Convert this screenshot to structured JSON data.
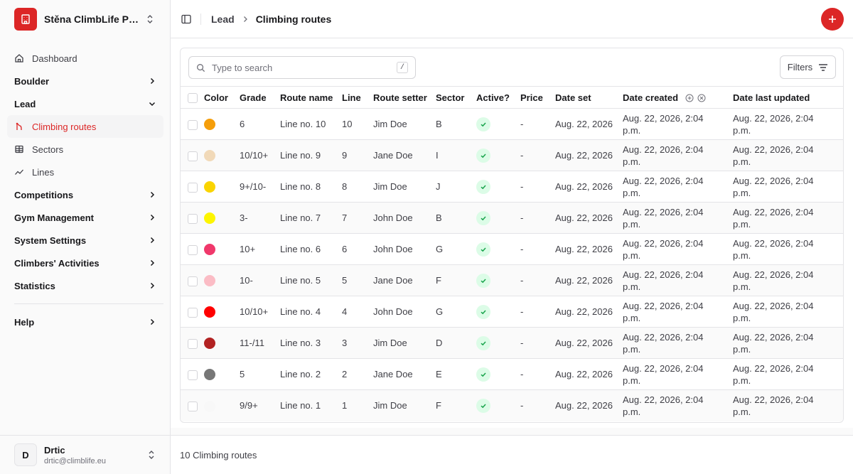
{
  "sidebar": {
    "gym_name": "Stěna ClimbLife Pra...",
    "items": [
      {
        "type": "item",
        "label": "Dashboard",
        "icon": "home-icon",
        "name": "sidebar-item-dashboard"
      },
      {
        "type": "group",
        "label": "Boulder",
        "name": "sidebar-group-boulder",
        "expanded": false
      },
      {
        "type": "group",
        "label": "Lead",
        "name": "sidebar-group-lead",
        "expanded": true
      },
      {
        "type": "item",
        "label": "Climbing routes",
        "icon": "climbing-routes-icon",
        "name": "sidebar-item-climbing-routes",
        "active": true
      },
      {
        "type": "item",
        "label": "Sectors",
        "icon": "grid-icon",
        "name": "sidebar-item-sectors"
      },
      {
        "type": "item",
        "label": "Lines",
        "icon": "trend-icon",
        "name": "sidebar-item-lines"
      },
      {
        "type": "group",
        "label": "Competitions",
        "name": "sidebar-group-competitions",
        "expanded": false
      },
      {
        "type": "group",
        "label": "Gym Management",
        "name": "sidebar-group-gym-management",
        "expanded": false
      },
      {
        "type": "group",
        "label": "System Settings",
        "name": "sidebar-group-system-settings",
        "expanded": false
      },
      {
        "type": "group",
        "label": "Climbers' Activities",
        "name": "sidebar-group-climbers-activities",
        "expanded": false
      },
      {
        "type": "group",
        "label": "Statistics",
        "name": "sidebar-group-statistics",
        "expanded": false
      },
      {
        "type": "separator"
      },
      {
        "type": "group",
        "label": "Help",
        "name": "sidebar-group-help",
        "expanded": false
      }
    ],
    "user": {
      "initial": "D",
      "name": "Drtic",
      "email": "drtic@climblife.eu"
    }
  },
  "header": {
    "breadcrumb_parent": "Lead",
    "breadcrumb_current": "Climbing routes"
  },
  "toolbar": {
    "search_placeholder": "Type to search",
    "search_shortcut": "/",
    "filters_label": "Filters"
  },
  "table": {
    "columns": [
      "Color",
      "Grade",
      "Route name",
      "Line",
      "Route setter",
      "Sector",
      "Active?",
      "Price",
      "Date set",
      "Date created",
      "Date last updated"
    ],
    "rows": [
      {
        "color": "#f59e0b",
        "grade": "6",
        "route_name": "Line no. 10",
        "line": "10",
        "setter": "Jim Doe",
        "sector": "B",
        "active": true,
        "price": "-",
        "date_set": "Aug. 22, 2026",
        "date_created": "Aug. 22, 2026, 2:04 p.m.",
        "date_updated": "Aug. 22, 2026, 2:04 p.m."
      },
      {
        "color": "#f1d9b8",
        "grade": "10/10+",
        "route_name": "Line no. 9",
        "line": "9",
        "setter": "Jane Doe",
        "sector": "I",
        "active": true,
        "price": "-",
        "date_set": "Aug. 22, 2026",
        "date_created": "Aug. 22, 2026, 2:04 p.m.",
        "date_updated": "Aug. 22, 2026, 2:04 p.m."
      },
      {
        "color": "#fad400",
        "grade": "9+/10-",
        "route_name": "Line no. 8",
        "line": "8",
        "setter": "Jim Doe",
        "sector": "J",
        "active": true,
        "price": "-",
        "date_set": "Aug. 22, 2026",
        "date_created": "Aug. 22, 2026, 2:04 p.m.",
        "date_updated": "Aug. 22, 2026, 2:04 p.m."
      },
      {
        "color": "#fdf500",
        "grade": "3-",
        "route_name": "Line no. 7",
        "line": "7",
        "setter": "John Doe",
        "sector": "B",
        "active": true,
        "price": "-",
        "date_set": "Aug. 22, 2026",
        "date_created": "Aug. 22, 2026, 2:04 p.m.",
        "date_updated": "Aug. 22, 2026, 2:04 p.m."
      },
      {
        "color": "#f0386b",
        "grade": "10+",
        "route_name": "Line no. 6",
        "line": "6",
        "setter": "John Doe",
        "sector": "G",
        "active": true,
        "price": "-",
        "date_set": "Aug. 22, 2026",
        "date_created": "Aug. 22, 2026, 2:04 p.m.",
        "date_updated": "Aug. 22, 2026, 2:04 p.m."
      },
      {
        "color": "#fbbcc5",
        "grade": "10-",
        "route_name": "Line no. 5",
        "line": "5",
        "setter": "Jane Doe",
        "sector": "F",
        "active": true,
        "price": "-",
        "date_set": "Aug. 22, 2026",
        "date_created": "Aug. 22, 2026, 2:04 p.m.",
        "date_updated": "Aug. 22, 2026, 2:04 p.m."
      },
      {
        "color": "#ff0000",
        "grade": "10/10+",
        "route_name": "Line no. 4",
        "line": "4",
        "setter": "John Doe",
        "sector": "G",
        "active": true,
        "price": "-",
        "date_set": "Aug. 22, 2026",
        "date_created": "Aug. 22, 2026, 2:04 p.m.",
        "date_updated": "Aug. 22, 2026, 2:04 p.m."
      },
      {
        "color": "#b22222",
        "grade": "11-/11",
        "route_name": "Line no. 3",
        "line": "3",
        "setter": "Jim Doe",
        "sector": "D",
        "active": true,
        "price": "-",
        "date_set": "Aug. 22, 2026",
        "date_created": "Aug. 22, 2026, 2:04 p.m.",
        "date_updated": "Aug. 22, 2026, 2:04 p.m."
      },
      {
        "color": "#777777",
        "grade": "5",
        "route_name": "Line no. 2",
        "line": "2",
        "setter": "Jane Doe",
        "sector": "E",
        "active": true,
        "price": "-",
        "date_set": "Aug. 22, 2026",
        "date_created": "Aug. 22, 2026, 2:04 p.m.",
        "date_updated": "Aug. 22, 2026, 2:04 p.m."
      },
      {
        "color": "#f8f8f8",
        "grade": "9/9+",
        "route_name": "Line no. 1",
        "line": "1",
        "setter": "Jim Doe",
        "sector": "F",
        "active": true,
        "price": "-",
        "date_set": "Aug. 22, 2026",
        "date_created": "Aug. 22, 2026, 2:04 p.m.",
        "date_updated": "Aug. 22, 2026, 2:04 p.m."
      }
    ]
  },
  "footer": {
    "count_text": "10 Climbing routes"
  },
  "colors": {
    "accent": "#dc2626",
    "active_badge_bg": "#dcfce7",
    "active_badge_check": "#16a34a"
  }
}
